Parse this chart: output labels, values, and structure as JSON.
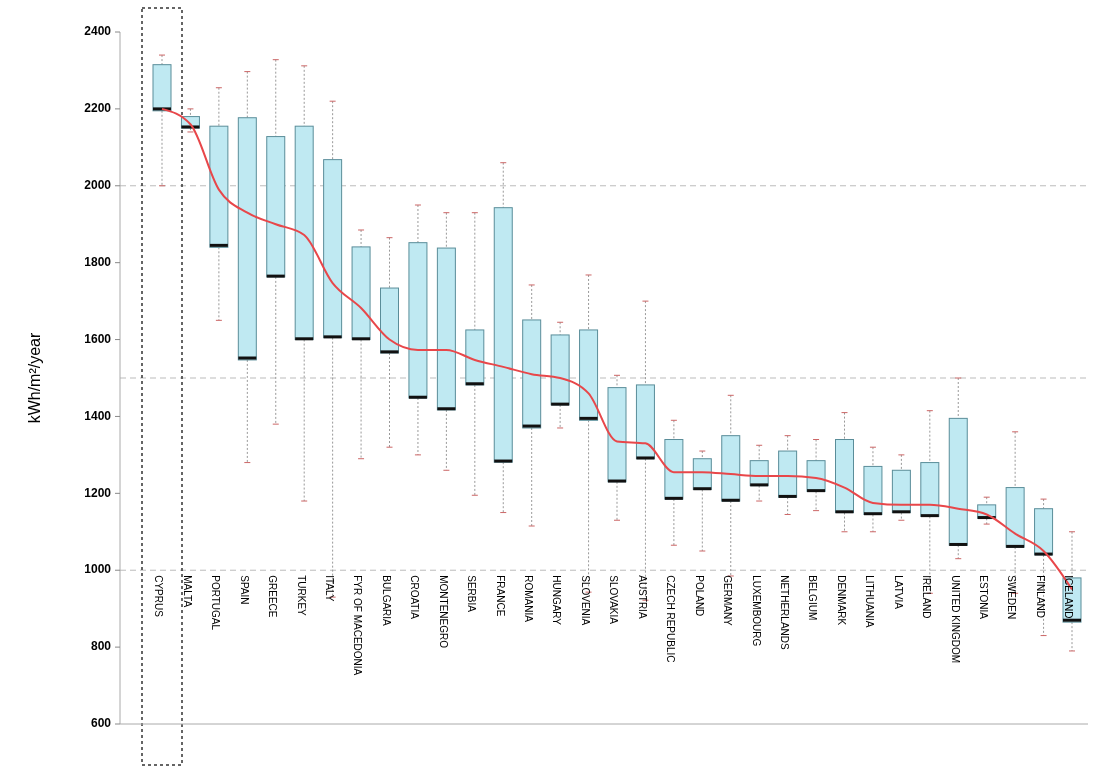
{
  "chart_data": {
    "type": "box",
    "ylabel": "kWh/m²/year",
    "categories": [
      "CYPRUS",
      "MALTA",
      "PORTUGAL",
      "SPAIN",
      "GREECE",
      "TURKEY",
      "ITALY",
      "FYR OF MACEDONIA",
      "BULGARIA",
      "CROATIA",
      "MONTENEGRO",
      "SERBIA",
      "FRANCE",
      "ROMANIA",
      "HUNGARY",
      "SLOVENIA",
      "SLOVAKIA",
      "AUSTRIA",
      "CZECH REPUBLIC",
      "POLAND",
      "GERMANY",
      "LUXEMBOURG",
      "NETHERLANDS",
      "BELGIUM",
      "DENMARK",
      "LITHUANIA",
      "LATVIA",
      "IRELAND",
      "UNITED KINGDOM",
      "ESTONIA",
      "SWEDEN",
      "FINLAND",
      "ICELAND"
    ],
    "color": "#bfe9f2",
    "boxes": [
      {
        "low": 2000,
        "q1": 2195,
        "median": 2200,
        "q3": 2315,
        "high": 2340
      },
      {
        "low": 2140,
        "q1": 2150,
        "median": 2153,
        "q3": 2180,
        "high": 2200
      },
      {
        "low": 1650,
        "q1": 1840,
        "median": 1845,
        "q3": 2155,
        "high": 2255
      },
      {
        "low": 1280,
        "q1": 1547,
        "median": 1552,
        "q3": 2177,
        "high": 2297
      },
      {
        "low": 1380,
        "q1": 1763,
        "median": 1765,
        "q3": 2128,
        "high": 2328
      },
      {
        "low": 1180,
        "q1": 1600,
        "median": 1602,
        "q3": 2155,
        "high": 2312
      },
      {
        "low": 930,
        "q1": 1605,
        "median": 1607,
        "q3": 2068,
        "high": 2220
      },
      {
        "low": 1290,
        "q1": 1600,
        "median": 1602,
        "q3": 1841,
        "high": 1885
      },
      {
        "low": 1320,
        "q1": 1565,
        "median": 1568,
        "q3": 1734,
        "high": 1865
      },
      {
        "low": 1300,
        "q1": 1448,
        "median": 1450,
        "q3": 1852,
        "high": 1950
      },
      {
        "low": 1260,
        "q1": 1417,
        "median": 1420,
        "q3": 1838,
        "high": 1930
      },
      {
        "low": 1195,
        "q1": 1482,
        "median": 1485,
        "q3": 1625,
        "high": 1930
      },
      {
        "low": 1150,
        "q1": 1281,
        "median": 1284,
        "q3": 1943,
        "high": 2060
      },
      {
        "low": 1115,
        "q1": 1370,
        "median": 1375,
        "q3": 1651,
        "high": 1742
      },
      {
        "low": 1370,
        "q1": 1430,
        "median": 1432,
        "q3": 1612,
        "high": 1645
      },
      {
        "low": 943,
        "q1": 1390,
        "median": 1395,
        "q3": 1625,
        "high": 1768
      },
      {
        "low": 1130,
        "q1": 1230,
        "median": 1232,
        "q3": 1475,
        "high": 1507
      },
      {
        "low": 922,
        "q1": 1290,
        "median": 1292,
        "q3": 1482,
        "high": 1700
      },
      {
        "low": 1065,
        "q1": 1185,
        "median": 1187,
        "q3": 1340,
        "high": 1390
      },
      {
        "low": 1050,
        "q1": 1210,
        "median": 1212,
        "q3": 1290,
        "high": 1310
      },
      {
        "low": 985,
        "q1": 1180,
        "median": 1182,
        "q3": 1350,
        "high": 1455
      },
      {
        "low": 1180,
        "q1": 1220,
        "median": 1222,
        "q3": 1285,
        "high": 1325
      },
      {
        "low": 1145,
        "q1": 1190,
        "median": 1192,
        "q3": 1310,
        "high": 1350
      },
      {
        "low": 1155,
        "q1": 1205,
        "median": 1207,
        "q3": 1285,
        "high": 1340
      },
      {
        "low": 1100,
        "q1": 1150,
        "median": 1152,
        "q3": 1340,
        "high": 1410
      },
      {
        "low": 1100,
        "q1": 1145,
        "median": 1147,
        "q3": 1270,
        "high": 1320
      },
      {
        "low": 1130,
        "q1": 1150,
        "median": 1152,
        "q3": 1260,
        "high": 1300
      },
      {
        "low": 940,
        "q1": 1140,
        "median": 1142,
        "q3": 1280,
        "high": 1415
      },
      {
        "low": 1030,
        "q1": 1065,
        "median": 1067,
        "q3": 1395,
        "high": 1500
      },
      {
        "low": 1120,
        "q1": 1135,
        "median": 1137,
        "q3": 1170,
        "high": 1190
      },
      {
        "low": 940,
        "q1": 1060,
        "median": 1062,
        "q3": 1215,
        "high": 1360
      },
      {
        "low": 830,
        "q1": 1040,
        "median": 1042,
        "q3": 1160,
        "high": 1185
      },
      {
        "low": 790,
        "q1": 865,
        "median": 870,
        "q3": 980,
        "high": 1100
      }
    ],
    "series": [
      {
        "type": "line",
        "color": "#e8474a",
        "values": [
          2200,
          2160,
          1990,
          1930,
          1900,
          1872,
          1747,
          1682,
          1600,
          1573,
          1573,
          1547,
          1529,
          1510,
          1500,
          1460,
          1335,
          1330,
          1255,
          1255,
          1250,
          1245,
          1245,
          1240,
          1215,
          1175,
          1170,
          1170,
          1160,
          1145,
          1095,
          1050,
          950
        ]
      }
    ],
    "marker": "none",
    "line_style": "solid",
    "ylim": [
      600,
      2400
    ],
    "yticks": [
      600,
      800,
      1000,
      1200,
      1400,
      1600,
      1800,
      2000,
      2200,
      2400
    ],
    "ref_lines": [
      {
        "axis": "y",
        "value": 2000,
        "color": "#bbbbbb",
        "line_style": "dashed"
      },
      {
        "axis": "y",
        "value": 1500,
        "color": "#bbbbbb",
        "line_style": "dashed"
      },
      {
        "axis": "y",
        "value": 1000,
        "color": "#bbbbbb",
        "line_style": "dashed"
      }
    ],
    "grid": false
  }
}
